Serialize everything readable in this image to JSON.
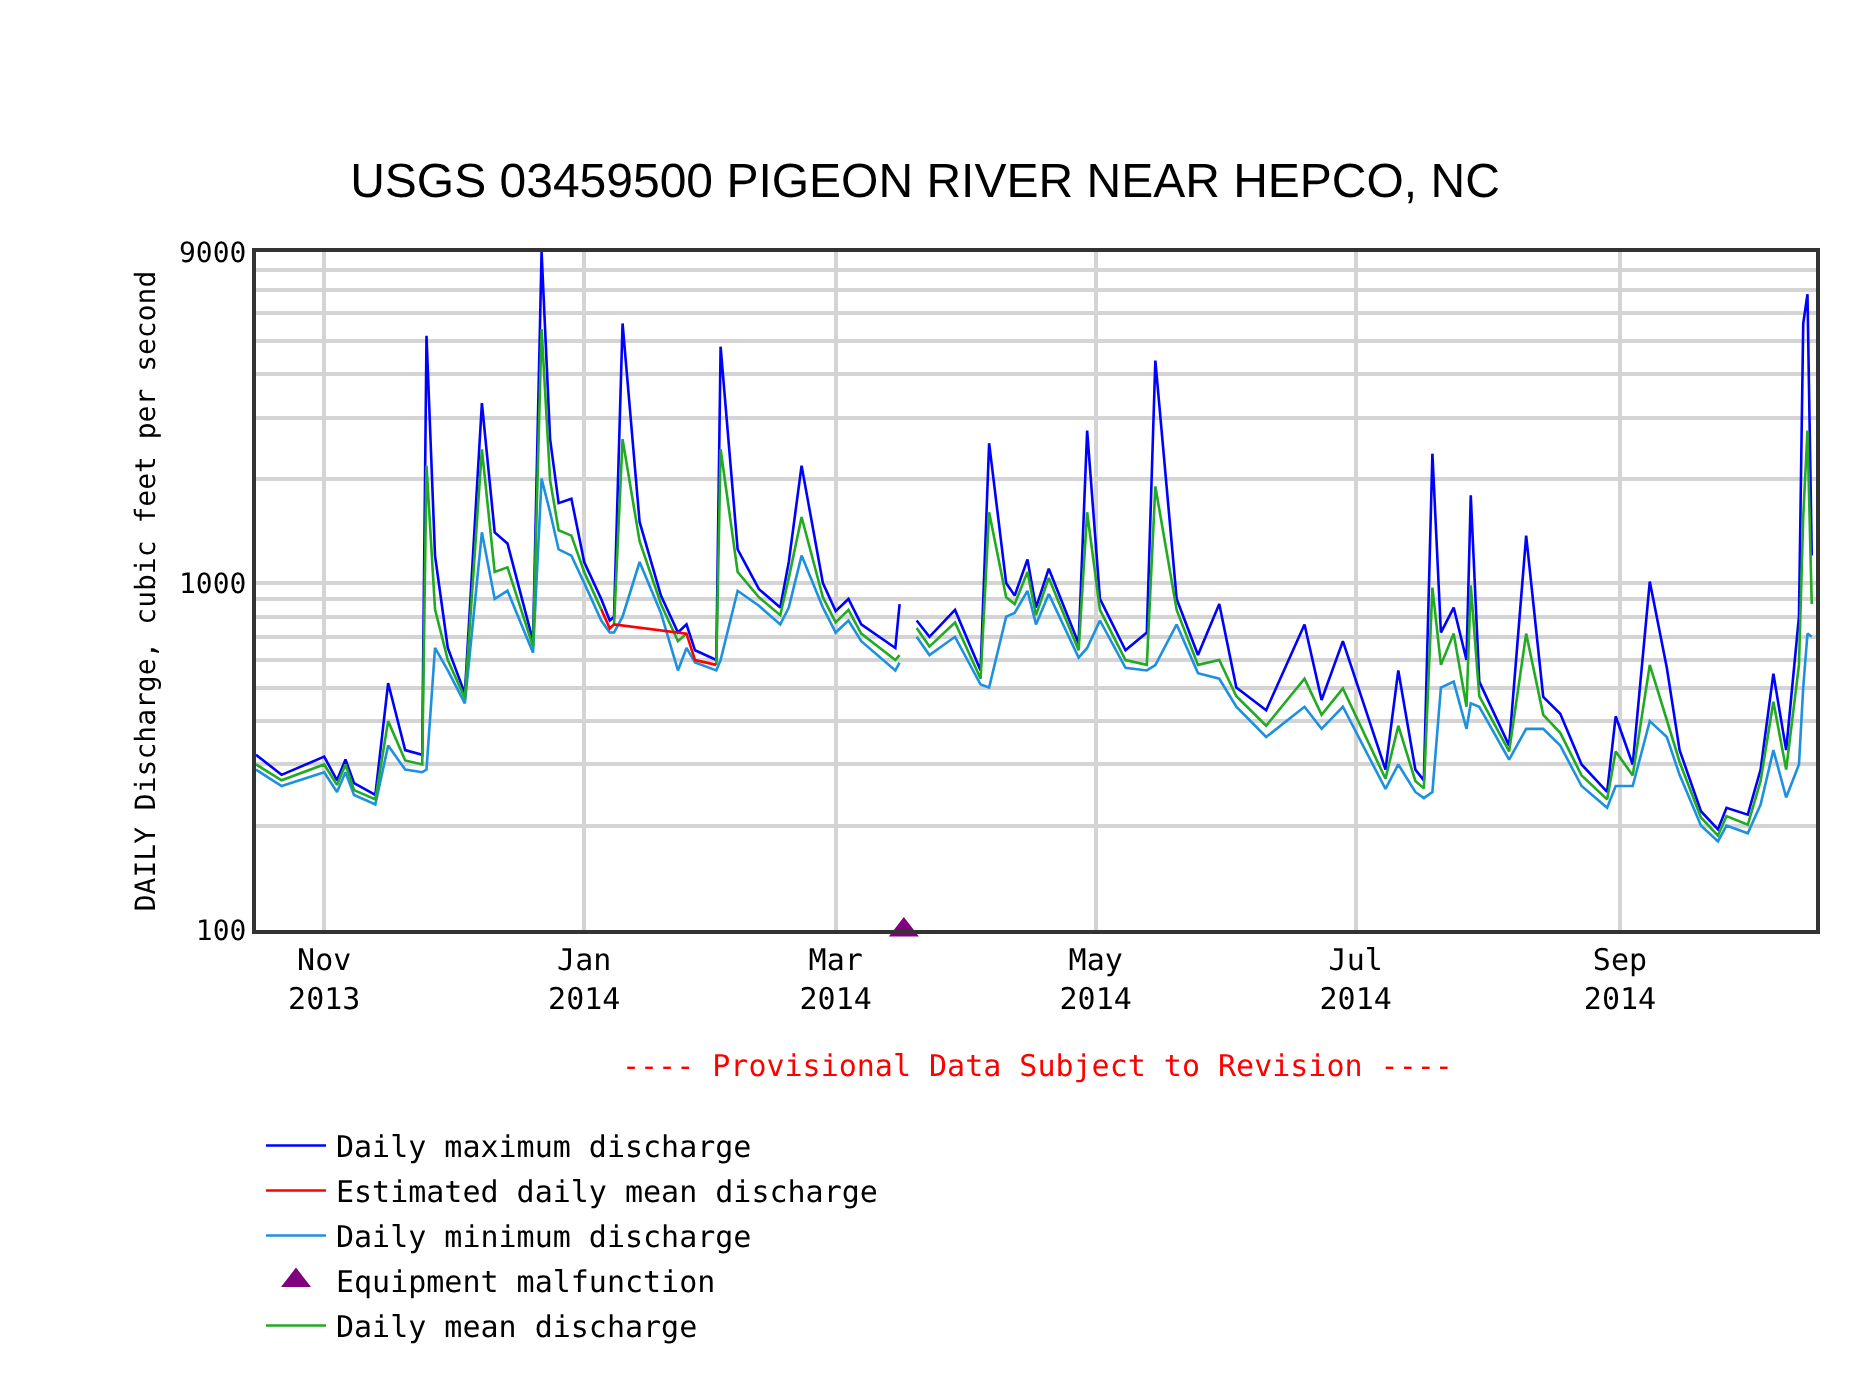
{
  "chart_data": {
    "type": "line",
    "title": "USGS 03459500 PIGEON RIVER NEAR HEPCO, NC",
    "ylabel": "DAILY Discharge, cubic feet per second",
    "annotations": [
      "---- Provisional Data Subject to Revision ----"
    ],
    "x": [
      "2013-10-16",
      "2013-10-22",
      "2013-11-01",
      "2013-11-04",
      "2013-11-06",
      "2013-11-08",
      "2013-11-13",
      "2013-11-16",
      "2013-11-20",
      "2013-11-24",
      "2013-11-25",
      "2013-11-27",
      "2013-11-30",
      "2013-12-04",
      "2013-12-08",
      "2013-12-11",
      "2013-12-14",
      "2013-12-20",
      "2013-12-22",
      "2013-12-24",
      "2013-12-26",
      "2013-12-29",
      "2014-01-01",
      "2014-01-05",
      "2014-01-07",
      "2014-01-08",
      "2014-01-10",
      "2014-01-14",
      "2014-01-19",
      "2014-01-23",
      "2014-01-25",
      "2014-01-27",
      "2014-02-01",
      "2014-02-02",
      "2014-02-06",
      "2014-02-11",
      "2014-02-16",
      "2014-02-18",
      "2014-02-21",
      "2014-02-26",
      "2014-03-01",
      "2014-03-04",
      "2014-03-07",
      "2014-03-15",
      "2014-03-16",
      "2014-03-17",
      "2014-03-20",
      "2014-03-23",
      "2014-03-29",
      "2014-04-04",
      "2014-04-06",
      "2014-04-10",
      "2014-04-12",
      "2014-04-15",
      "2014-04-17",
      "2014-04-20",
      "2014-04-27",
      "2014-04-29",
      "2014-05-02",
      "2014-05-08",
      "2014-05-13",
      "2014-05-15",
      "2014-05-20",
      "2014-05-25",
      "2014-05-30",
      "2014-06-03",
      "2014-06-10",
      "2014-06-19",
      "2014-06-23",
      "2014-06-28",
      "2014-07-08",
      "2014-07-11",
      "2014-07-15",
      "2014-07-17",
      "2014-07-19",
      "2014-07-21",
      "2014-07-24",
      "2014-07-27",
      "2014-07-28",
      "2014-07-30",
      "2014-08-06",
      "2014-08-10",
      "2014-08-14",
      "2014-08-18",
      "2014-08-23",
      "2014-08-29",
      "2014-08-31",
      "2014-09-04",
      "2014-09-08",
      "2014-09-12",
      "2014-09-15",
      "2014-09-20",
      "2014-09-24",
      "2014-09-26",
      "2014-10-01",
      "2014-10-04",
      "2014-10-07",
      "2014-10-10",
      "2014-10-13",
      "2014-10-14",
      "2014-10-15",
      "2014-10-16"
    ],
    "series": [
      {
        "name": "Daily maximum discharge",
        "color": "#0000ff",
        "values": [
          320,
          280,
          316,
          270,
          310,
          265,
          245,
          515,
          330,
          320,
          5160,
          1200,
          650,
          480,
          3300,
          1400,
          1300,
          680,
          9000,
          2600,
          1700,
          1750,
          1150,
          900,
          780,
          800,
          5600,
          1500,
          920,
          720,
          760,
          640,
          600,
          4800,
          1250,
          960,
          850,
          1150,
          2180,
          1000,
          830,
          900,
          760,
          650,
          870,
          null,
          780,
          700,
          837,
          560,
          2530,
          1000,
          920,
          1170,
          850,
          1100,
          670,
          2750,
          900,
          640,
          720,
          4380,
          900,
          620,
          870,
          500,
          430,
          760,
          460,
          680,
          290,
          560,
          290,
          270,
          2360,
          720,
          850,
          600,
          1790,
          520,
          340,
          1370,
          470,
          420,
          300,
          250,
          413,
          300,
          1010,
          570,
          330,
          220,
          195,
          225,
          215,
          290,
          548,
          330,
          800,
          5600,
          6800,
          1200
        ]
      },
      {
        "name": "Daily minimum discharge",
        "color": "#1e90e0",
        "values": [
          290,
          260,
          285,
          250,
          285,
          245,
          230,
          340,
          290,
          285,
          290,
          650,
          560,
          450,
          1400,
          900,
          950,
          630,
          2000,
          1600,
          1250,
          1200,
          1000,
          780,
          720,
          720,
          800,
          1150,
          820,
          560,
          650,
          590,
          560,
          600,
          950,
          860,
          760,
          850,
          1200,
          850,
          720,
          780,
          680,
          560,
          590,
          null,
          700,
          620,
          700,
          510,
          500,
          800,
          820,
          950,
          760,
          930,
          610,
          650,
          780,
          570,
          560,
          580,
          760,
          550,
          530,
          440,
          360,
          440,
          380,
          440,
          255,
          300,
          250,
          240,
          250,
          500,
          520,
          380,
          450,
          440,
          310,
          380,
          380,
          340,
          260,
          225,
          260,
          260,
          400,
          360,
          280,
          200,
          180,
          200,
          190,
          230,
          330,
          241,
          300,
          500,
          715,
          700
        ]
      },
      {
        "name": "Daily mean discharge",
        "color": "#22aa22",
        "values": [
          300,
          270,
          300,
          262,
          300,
          253,
          238,
          400,
          308,
          300,
          2180,
          840,
          600,
          466,
          2430,
          1076,
          1110,
          656,
          5400,
          1980,
          1420,
          1370,
          1076,
          840,
          null,
          760,
          2600,
          1320,
          870,
          680,
          715,
          null,
          581,
          2430,
          1076,
          910,
          808,
          1035,
          1550,
          910,
          770,
          837,
          715,
          600,
          620,
          null,
          742,
          656,
          770,
          530,
          1600,
          910,
          870,
          1076,
          808,
          1035,
          640,
          1600,
          837,
          600,
          581,
          1900,
          837,
          581,
          600,
          472,
          388,
          530,
          417,
          497,
          273,
          388,
          269,
          256,
          970,
          581,
          715,
          440,
          985,
          472,
          327,
          715,
          417,
          370,
          279,
          238,
          327,
          279,
          581,
          403,
          305,
          211,
          187,
          213,
          201,
          269,
          455,
          290,
          581,
          1550,
          2750,
          870
        ]
      },
      {
        "name": "Estimated daily mean discharge",
        "color": "#ff0000",
        "x": [
          "2014-01-05",
          "2014-01-07",
          "2014-01-08",
          "2014-01-25",
          "2014-01-27",
          "2014-02-01"
        ],
        "values": [
          840,
          740,
          760,
          715,
          600,
          581
        ]
      },
      {
        "name": "Equipment malfunction",
        "color": "#800080",
        "type": "scatter",
        "marker": "triangle",
        "x": [
          "2014-03-17"
        ],
        "values": [
          100
        ]
      }
    ],
    "xlim": [
      "2013-10-16",
      "2014-10-17"
    ],
    "xticks": [
      {
        "value": "2013-11-01",
        "label": "Nov\n2013"
      },
      {
        "value": "2014-01-01",
        "label": "Jan\n2014"
      },
      {
        "value": "2014-03-01",
        "label": "Mar\n2014"
      },
      {
        "value": "2014-05-01",
        "label": "May\n2014"
      },
      {
        "value": "2014-07-01",
        "label": "Jul\n2014"
      },
      {
        "value": "2014-09-01",
        "label": "Sep\n2014"
      }
    ],
    "ylim": [
      100,
      9000
    ],
    "log": "y",
    "yticks": [
      100,
      {
        "value": 200,
        "label": null
      },
      {
        "value": 300,
        "label": null
      },
      {
        "value": 400,
        "label": null
      },
      {
        "value": 500,
        "label": null
      },
      {
        "value": 600,
        "label": null
      },
      {
        "value": 700,
        "label": null
      },
      {
        "value": 800,
        "label": null
      },
      {
        "value": 900,
        "label": null
      },
      1000,
      {
        "value": 2000,
        "label": null
      },
      {
        "value": 3000,
        "label": null
      },
      {
        "value": 4000,
        "label": null
      },
      {
        "value": 5000,
        "label": null
      },
      {
        "value": 6000,
        "label": null
      },
      {
        "value": 7000,
        "label": null
      },
      {
        "value": 8000,
        "label": null
      },
      9000
    ],
    "grid": true,
    "legend": "bottom",
    "marker": "none",
    "line_style": "solid"
  }
}
